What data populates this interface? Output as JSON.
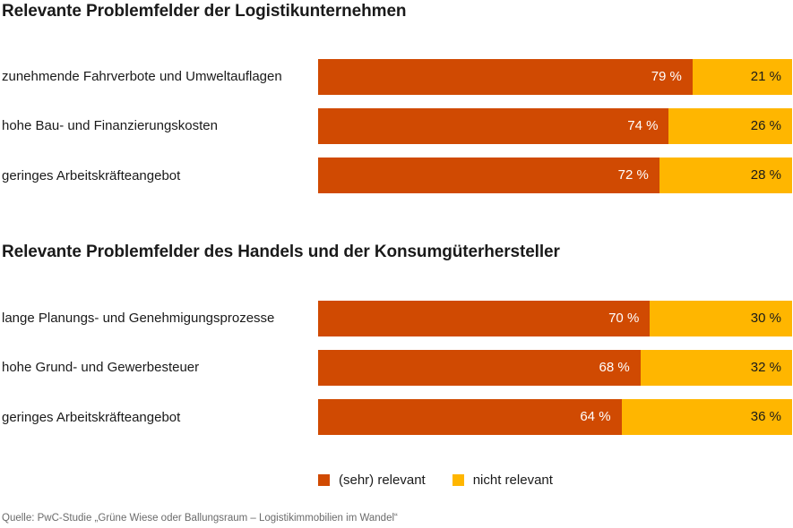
{
  "chart_data": [
    {
      "type": "bar",
      "orientation": "horizontal",
      "stacked": true,
      "title": "Relevante Problemfelder der Logistikunternehmen",
      "categories": [
        "zunehmende Fahrverbote und Umweltauflagen",
        "hohe Bau- und Finanzierungskosten",
        "geringes Arbeitskräfteangebot"
      ],
      "series": [
        {
          "name": "(sehr) relevant",
          "values": [
            79,
            74,
            72
          ],
          "labels": [
            "79 %",
            "74 %",
            "72 %"
          ]
        },
        {
          "name": "nicht relevant",
          "values": [
            21,
            26,
            28
          ],
          "labels": [
            "21 %",
            "26 %",
            "28 %"
          ]
        }
      ],
      "xlim": [
        0,
        100
      ],
      "xlabel": "",
      "ylabel": ""
    },
    {
      "type": "bar",
      "orientation": "horizontal",
      "stacked": true,
      "title": "Relevante Problemfelder des Handels und der Konsumgüterhersteller",
      "categories": [
        "lange Planungs- und Genehmigungsprozesse",
        "hohe Grund- und Gewerbesteuer",
        "geringes Arbeitskräfteangebot"
      ],
      "series": [
        {
          "name": "(sehr) relevant",
          "values": [
            70,
            68,
            64
          ],
          "labels": [
            "70 %",
            "68 %",
            "64 %"
          ]
        },
        {
          "name": "nicht relevant",
          "values": [
            30,
            32,
            36
          ],
          "labels": [
            "30 %",
            "32 %",
            "36 %"
          ]
        }
      ],
      "xlim": [
        0,
        100
      ],
      "xlabel": "",
      "ylabel": ""
    }
  ],
  "legend": [
    {
      "label": "(sehr) relevant",
      "color": "#D04A02"
    },
    {
      "label": "nicht relevant",
      "color": "#FFB600"
    }
  ],
  "colors": {
    "relevant": "#D04A02",
    "not_relevant": "#FFB600"
  },
  "source": "Quelle: PwC-Studie „Grüne Wiese oder Ballungsraum – Logistikimmobilien im Wandel“"
}
